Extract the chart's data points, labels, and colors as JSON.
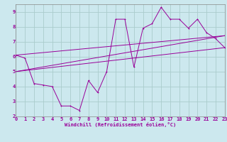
{
  "xlabel": "Windchill (Refroidissement éolien,°C)",
  "bg_color": "#cce8ee",
  "grid_color": "#aacccc",
  "line_color": "#990099",
  "xlim": [
    0,
    23
  ],
  "ylim": [
    2,
    9.5
  ],
  "xticks": [
    0,
    1,
    2,
    3,
    4,
    5,
    6,
    7,
    8,
    9,
    10,
    11,
    12,
    13,
    14,
    15,
    16,
    17,
    18,
    19,
    20,
    21,
    22,
    23
  ],
  "yticks": [
    2,
    3,
    4,
    5,
    6,
    7,
    8,
    9
  ],
  "main_x": [
    0,
    1,
    2,
    3,
    4,
    5,
    6,
    7,
    8,
    9,
    10,
    11,
    12,
    13,
    14,
    15,
    16,
    17,
    18,
    19,
    20,
    21,
    22,
    23
  ],
  "main_y": [
    6.1,
    5.9,
    4.2,
    4.1,
    4.0,
    2.7,
    2.7,
    2.4,
    4.4,
    3.6,
    5.0,
    8.5,
    8.5,
    5.3,
    7.9,
    8.2,
    9.3,
    8.5,
    8.5,
    7.9,
    8.5,
    7.6,
    7.2,
    6.6
  ],
  "line2_x": [
    0,
    23
  ],
  "line2_y": [
    6.1,
    7.4
  ],
  "line3_x": [
    0,
    23
  ],
  "line3_y": [
    5.0,
    7.4
  ],
  "line4_x": [
    0,
    23
  ],
  "line4_y": [
    5.0,
    6.6
  ]
}
